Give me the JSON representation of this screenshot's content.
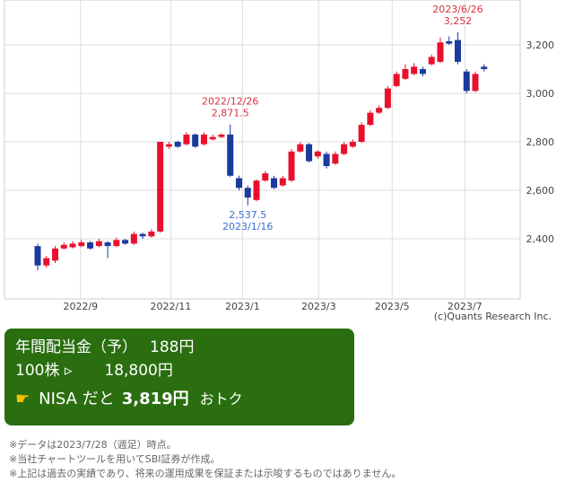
{
  "chart_data": {
    "type": "candlestick",
    "categories": [
      null,
      null,
      null,
      null,
      null,
      null,
      null,
      null,
      null,
      null,
      null,
      null,
      null,
      null,
      null,
      null,
      null,
      null,
      null,
      null,
      null,
      null,
      null,
      null,
      null,
      null,
      null,
      null,
      null,
      null,
      null,
      null,
      null,
      null,
      null,
      null,
      null,
      null,
      null,
      null,
      null,
      null,
      null,
      null,
      null,
      null,
      null,
      null,
      null,
      null,
      null,
      null
    ],
    "open": [
      2370,
      2290,
      2310,
      2360,
      2365,
      2370,
      2385,
      2370,
      2385,
      2370,
      2395,
      2380,
      2420,
      2410,
      2430,
      2780,
      2800,
      2790,
      2830,
      2790,
      2810,
      2820,
      2830,
      2650,
      2610,
      2560,
      2640,
      2650,
      2620,
      2640,
      2760,
      2790,
      2740,
      2750,
      2710,
      2750,
      2780,
      2800,
      2870,
      2920,
      2940,
      3030,
      3060,
      3080,
      3100,
      3120,
      3130,
      3215,
      3220,
      3090,
      3010,
      3110
    ],
    "high": [
      2380,
      2330,
      2370,
      2385,
      2390,
      2395,
      2390,
      2400,
      2390,
      2405,
      2400,
      2430,
      2425,
      2440,
      2800,
      2800,
      2805,
      2840,
      2835,
      2840,
      2830,
      2835,
      2871.5,
      2660,
      2620,
      2645,
      2680,
      2660,
      2660,
      2770,
      2800,
      2795,
      2765,
      2760,
      2760,
      2800,
      2810,
      2880,
      2930,
      2950,
      3030,
      3090,
      3120,
      3125,
      3110,
      3160,
      3230,
      3235,
      3252,
      3100,
      3090,
      3120
    ],
    "low": [
      2270,
      2280,
      2300,
      2355,
      2360,
      2365,
      2355,
      2365,
      2320,
      2365,
      2375,
      2375,
      2400,
      2405,
      2425,
      2770,
      2775,
      2785,
      2775,
      2785,
      2805,
      2815,
      2655,
      2600,
      2537.5,
      2555,
      2635,
      2605,
      2615,
      2635,
      2755,
      2715,
      2730,
      2690,
      2705,
      2745,
      2775,
      2795,
      2865,
      2915,
      2935,
      3025,
      3055,
      3075,
      3070,
      3115,
      3125,
      3200,
      3120,
      3000,
      3005,
      3090
    ],
    "close": [
      2290,
      2320,
      2360,
      2375,
      2380,
      2385,
      2360,
      2390,
      2370,
      2395,
      2380,
      2420,
      2410,
      2430,
      2800,
      2790,
      2780,
      2830,
      2780,
      2830,
      2820,
      2830,
      2660,
      2610,
      2570,
      2640,
      2670,
      2610,
      2650,
      2760,
      2790,
      2720,
      2760,
      2700,
      2750,
      2790,
      2800,
      2870,
      2920,
      2940,
      3020,
      3080,
      3100,
      3110,
      3080,
      3150,
      3210,
      3205,
      3130,
      3010,
      3080,
      3100
    ],
    "up_color": "#e8112d",
    "down_color": "#1b3a9e",
    "ylim": [
      2152,
      3385
    ],
    "yticks": [
      {
        "value": 2400,
        "label": "2,400"
      },
      {
        "value": 2600,
        "label": "2,600"
      },
      {
        "value": 2800,
        "label": "2,800"
      },
      {
        "value": 3000,
        "label": "3,000"
      },
      {
        "value": 3200,
        "label": "3,200"
      }
    ],
    "xticks": [
      {
        "value": 4.9,
        "label": "2022/9"
      },
      {
        "value": 15.2,
        "label": "2022/11"
      },
      {
        "value": 23.4,
        "label": "2023/1"
      },
      {
        "value": 32.1,
        "label": "2023/3"
      },
      {
        "value": 40.5,
        "label": "2023/5"
      },
      {
        "value": 48.8,
        "label": "2023/7"
      }
    ],
    "grid": true,
    "annotations": [
      {
        "date": "2022/12/26",
        "value": 2871.5,
        "label": "2,871.5",
        "color": "#d9333f",
        "position": "above"
      },
      {
        "date": "2023/1/16",
        "value": 2537.5,
        "label": "2,537.5",
        "color": "#3d6fd8",
        "position": "below"
      },
      {
        "date": "2023/6/26",
        "value": 3252,
        "label": "3,252",
        "color": "#d9333f",
        "position": "above"
      }
    ],
    "source": "(c)Quants Research Inc."
  },
  "info": {
    "dividend_label": "年間配当金（予）",
    "dividend": "188円",
    "shares_label": "100株 ▹",
    "shares_amount": "18,800円",
    "nisa_icon": "☛",
    "nisa_label": "NISA だと",
    "nisa_amount": "3,819円",
    "nisa_suffix": "おトク"
  },
  "notes": [
    "※データは2023/7/28（週足）時点。",
    "※当社チャートツールを用いてSBI証券が作成。",
    "※上記は過去の実績であり、将来の運用成果を保証または示唆するものではありません。"
  ]
}
